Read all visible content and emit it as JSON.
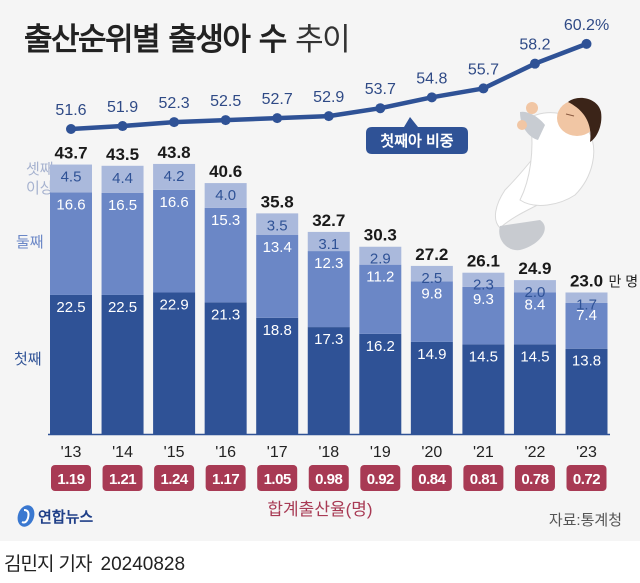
{
  "title": {
    "main": "출산순위별 출생아 수",
    "sub": "추이"
  },
  "legend": {
    "third": [
      "셋째",
      "이상"
    ],
    "second": "둘째",
    "first": "첫째"
  },
  "callout": {
    "label": "첫째아 비중"
  },
  "unit_label": "만 명",
  "tfr_label": "합계출산율(명)",
  "source": "자료:통계청",
  "logo": {
    "name": "연합뉴스"
  },
  "byline": {
    "author": "김민지 기자",
    "date": "20240828"
  },
  "colors": {
    "background": "#f5f5f5",
    "first": "#2f5296",
    "second": "#6b87c6",
    "third": "#aab9dc",
    "line": "#2f5296",
    "tfr_badge": "#a83a54",
    "legend_third": "#a6b2cf",
    "legend_second": "#6b87c6",
    "legend_first": "#2f5296"
  },
  "chart_data": [
    {
      "type": "bar",
      "stacked": true,
      "title": "출산순위별 출생아 수 추이",
      "ylabel": "만 명",
      "categories": [
        "'13",
        "'14",
        "'15",
        "'16",
        "'17",
        "'18",
        "'19",
        "'20",
        "'21",
        "'22",
        "'23"
      ],
      "series": [
        {
          "name": "첫째",
          "values": [
            22.5,
            22.5,
            22.9,
            21.3,
            18.8,
            17.3,
            16.2,
            14.9,
            14.5,
            14.5,
            13.8
          ]
        },
        {
          "name": "둘째",
          "values": [
            16.6,
            16.5,
            16.6,
            15.3,
            13.4,
            12.3,
            11.2,
            9.8,
            9.3,
            8.4,
            7.4
          ]
        },
        {
          "name": "셋째 이상",
          "values": [
            4.5,
            4.4,
            4.2,
            4.0,
            3.5,
            3.1,
            2.9,
            2.5,
            2.3,
            2.0,
            1.7
          ]
        }
      ],
      "totals": [
        43.7,
        43.5,
        43.8,
        40.6,
        35.8,
        32.7,
        30.3,
        27.2,
        26.1,
        24.9,
        23.0
      ],
      "total_labels": [
        "43.7",
        "43.5",
        "43.8",
        "40.6",
        "35.8",
        "32.7",
        "30.3",
        "27.2",
        "26.1",
        "24.9",
        "23.0"
      ],
      "grid": false
    },
    {
      "type": "line",
      "name": "첫째아 비중",
      "unit": "%",
      "categories": [
        "'13",
        "'14",
        "'15",
        "'16",
        "'17",
        "'18",
        "'19",
        "'20",
        "'21",
        "'22",
        "'23"
      ],
      "values": [
        51.6,
        51.9,
        52.3,
        52.5,
        52.7,
        52.9,
        53.7,
        54.8,
        55.7,
        58.2,
        60.2
      ],
      "labels": [
        "51.6",
        "51.9",
        "52.3",
        "52.5",
        "52.7",
        "52.9",
        "53.7",
        "54.8",
        "55.7",
        "58.2",
        "60.2%"
      ]
    },
    {
      "type": "table",
      "name": "합계출산율(명)",
      "categories": [
        "'13",
        "'14",
        "'15",
        "'16",
        "'17",
        "'18",
        "'19",
        "'20",
        "'21",
        "'22",
        "'23"
      ],
      "values": [
        1.19,
        1.21,
        1.24,
        1.17,
        1.05,
        0.98,
        0.92,
        0.84,
        0.81,
        0.78,
        0.72
      ],
      "labels": [
        "1.19",
        "1.21",
        "1.24",
        "1.17",
        "1.05",
        "0.98",
        "0.92",
        "0.84",
        "0.81",
        "0.78",
        "0.72"
      ]
    }
  ]
}
